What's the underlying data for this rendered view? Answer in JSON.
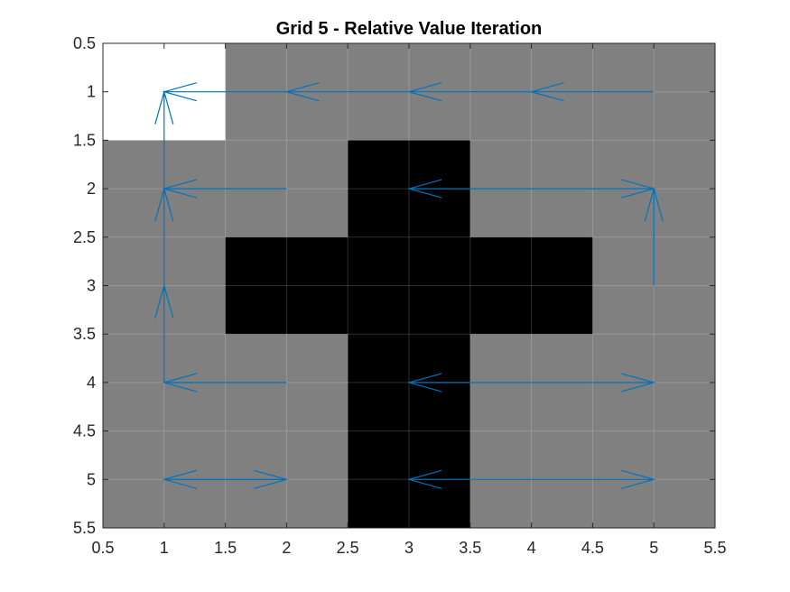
{
  "chart_data": {
    "type": "heatmap",
    "title": "Grid 5 - Relative Value Iteration",
    "xlabel": "",
    "ylabel": "",
    "xlim": [
      0.5,
      5.5
    ],
    "ylim": [
      0.5,
      5.5
    ],
    "y_reversed": true,
    "grid": true,
    "xticks": [
      0.5,
      1,
      1.5,
      2,
      2.5,
      3,
      3.5,
      4,
      4.5,
      5,
      5.5
    ],
    "yticks": [
      0.5,
      1,
      1.5,
      2,
      2.5,
      3,
      3.5,
      4,
      4.5,
      5,
      5.5
    ],
    "xtick_labels": [
      "0.5",
      "1",
      "1.5",
      "2",
      "2.5",
      "3",
      "3.5",
      "4",
      "4.5",
      "5",
      "5.5"
    ],
    "ytick_labels": [
      "0.5",
      "1",
      "1.5",
      "2",
      "2.5",
      "3",
      "3.5",
      "4",
      "4.5",
      "5",
      "5.5"
    ],
    "cells": {
      "description_rows": "row index = y value (1..5), column index = x value (1..5)",
      "values": [
        [
          2,
          1,
          1,
          1,
          1
        ],
        [
          1,
          1,
          0,
          1,
          1
        ],
        [
          1,
          0,
          0,
          0,
          1
        ],
        [
          1,
          1,
          0,
          1,
          1
        ],
        [
          1,
          1,
          0,
          1,
          1
        ]
      ]
    },
    "colors": {
      "goal": "#ffffff",
      "free": "#808080",
      "wall": "#000000",
      "arrow": "#0072BD"
    },
    "arrows": [
      {
        "x": 2,
        "y": 1,
        "u": -1,
        "v": 0
      },
      {
        "x": 3,
        "y": 1,
        "u": -1,
        "v": 0
      },
      {
        "x": 4,
        "y": 1,
        "u": -1,
        "v": 0
      },
      {
        "x": 5,
        "y": 1,
        "u": -1,
        "v": 0
      },
      {
        "x": 1,
        "y": 2,
        "u": 0,
        "v": -1
      },
      {
        "x": 2,
        "y": 2,
        "u": -1,
        "v": 0
      },
      {
        "x": 4,
        "y": 2,
        "u": -1,
        "v": 0
      },
      {
        "x": 4,
        "y": 2,
        "u": 1,
        "v": 0
      },
      {
        "x": 5,
        "y": 3,
        "u": 0,
        "v": -1
      },
      {
        "x": 1,
        "y": 3,
        "u": 0,
        "v": -1
      },
      {
        "x": 1,
        "y": 4,
        "u": 0,
        "v": -1
      },
      {
        "x": 2,
        "y": 4,
        "u": -1,
        "v": 0
      },
      {
        "x": 4,
        "y": 4,
        "u": -1,
        "v": 0
      },
      {
        "x": 4,
        "y": 4,
        "u": 1,
        "v": 0
      },
      {
        "x": 1,
        "y": 5,
        "u": 1,
        "v": 0
      },
      {
        "x": 2,
        "y": 5,
        "u": -1,
        "v": 0
      },
      {
        "x": 4,
        "y": 5,
        "u": -1,
        "v": 0
      },
      {
        "x": 4,
        "y": 5,
        "u": 1,
        "v": 0
      }
    ]
  }
}
